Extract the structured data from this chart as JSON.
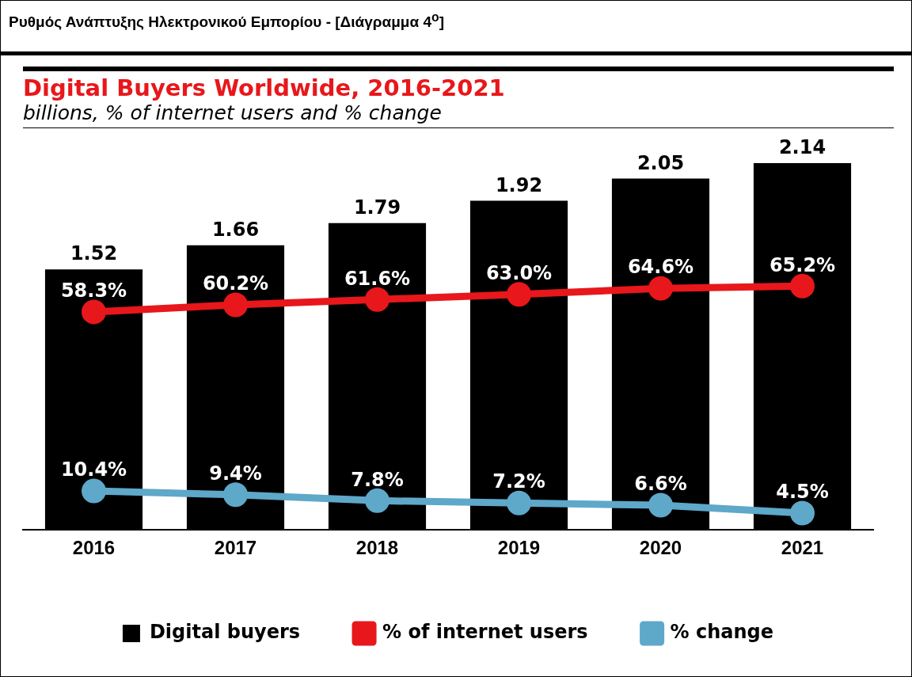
{
  "chart_data": {
    "type": "bar",
    "title": "Digital Buyers Worldwide, 2016-2021",
    "subtitle": "billions, % of internet users and % change",
    "annotations": [
      "Ρυθμός Ανάπτυξης Ηλεκτρονικού Εμπορίου - [Διάγραμμα 4$^{o}$]"
    ],
    "categories": [
      "2016",
      "2017",
      "2018",
      "2019",
      "2020",
      "2021"
    ],
    "series": [
      {
        "name": "Digital buyers",
        "color": "#000000",
        "values": [
          1.52,
          1.66,
          1.79,
          1.92,
          2.05,
          2.14
        ]
      },
      {
        "name": "% of internet users",
        "type": "line",
        "axis": "y2",
        "color": "#e8171b",
        "values": [
          58.3,
          60.2,
          61.6,
          63.0,
          64.6,
          65.2
        ],
        "value_labels": [
          "58.3%",
          "60.2%",
          "61.6%",
          "63.0%",
          "64.6%",
          "65.2%"
        ]
      },
      {
        "name": "% change",
        "type": "line",
        "axis": "y2",
        "color": "#5ea8c9",
        "values": [
          10.4,
          9.4,
          7.8,
          7.2,
          6.6,
          4.5
        ],
        "value_labels": [
          "10.4%",
          "9.4%",
          "7.8%",
          "7.2%",
          "6.6%",
          "4.5%"
        ]
      }
    ],
    "data_labels": true,
    "marker": "circle",
    "legend": "bottom",
    "tick_labels": "x",
    "grid": false
  }
}
